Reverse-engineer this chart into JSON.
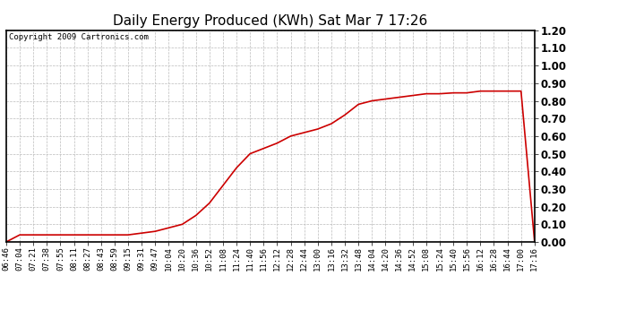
{
  "title": "Daily Energy Produced (KWh) Sat Mar 7 17:26",
  "copyright_text": "Copyright 2009 Cartronics.com",
  "line_color": "#cc0000",
  "bg_color": "#ffffff",
  "plot_bg_color": "#ffffff",
  "grid_color": "#bbbbbb",
  "ylim": [
    0.0,
    1.2
  ],
  "yticks": [
    0.0,
    0.1,
    0.2,
    0.3,
    0.4,
    0.5,
    0.6,
    0.7,
    0.8,
    0.9,
    1.0,
    1.1,
    1.2
  ],
  "x_labels": [
    "06:46",
    "07:04",
    "07:21",
    "07:38",
    "07:55",
    "08:11",
    "08:27",
    "08:43",
    "08:59",
    "09:15",
    "09:31",
    "09:47",
    "10:04",
    "10:20",
    "10:36",
    "10:52",
    "11:08",
    "11:24",
    "11:40",
    "11:56",
    "12:12",
    "12:28",
    "12:44",
    "13:00",
    "13:16",
    "13:32",
    "13:48",
    "14:04",
    "14:20",
    "14:36",
    "14:52",
    "15:08",
    "15:24",
    "15:40",
    "15:56",
    "16:12",
    "16:28",
    "16:44",
    "17:00",
    "17:16"
  ],
  "y_values": [
    0.0,
    0.04,
    0.04,
    0.04,
    0.04,
    0.04,
    0.04,
    0.04,
    0.04,
    0.04,
    0.05,
    0.06,
    0.08,
    0.1,
    0.15,
    0.22,
    0.32,
    0.42,
    0.5,
    0.53,
    0.56,
    0.6,
    0.62,
    0.64,
    0.67,
    0.72,
    0.78,
    0.8,
    0.81,
    0.82,
    0.83,
    0.84,
    0.84,
    0.845,
    0.845,
    0.855,
    0.855,
    0.855,
    0.855,
    0.0
  ],
  "title_fontsize": 11,
  "tick_fontsize": 6.5,
  "copyright_fontsize": 6.5,
  "ytick_fontsize": 8.5,
  "line_width": 1.2
}
